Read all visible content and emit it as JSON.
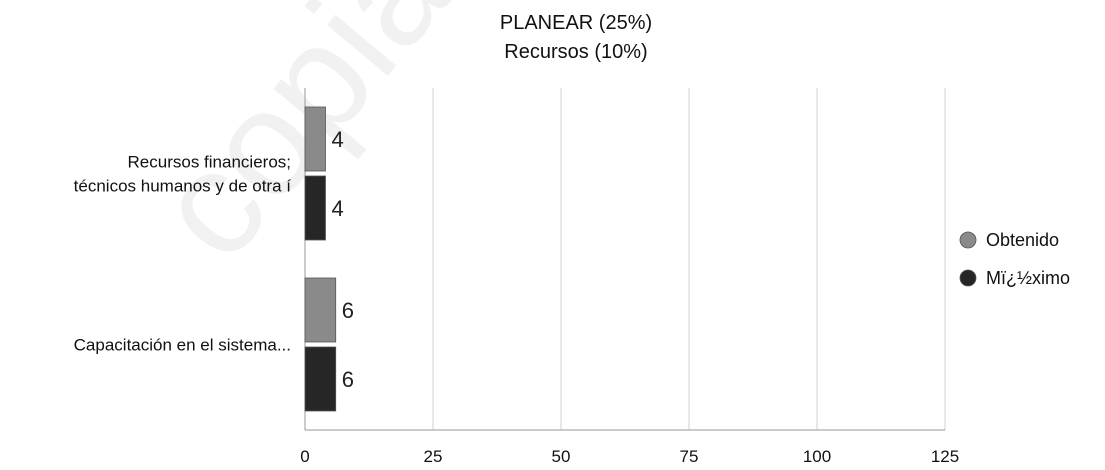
{
  "chart_data": {
    "type": "bar",
    "orientation": "horizontal",
    "title": "PLANEAR (25%)",
    "subtitle": "Recursos (10%)",
    "categories": [
      [
        "Recursos financieros;",
        "técnicos humanos y de otra í"
      ],
      [
        "Capacitación en el sistema..."
      ]
    ],
    "series": [
      {
        "name": "Obtenido",
        "color": "#8a8a8a",
        "values": [
          4,
          6
        ]
      },
      {
        "name": "Mï¿½ximo",
        "color": "#262626",
        "values": [
          4,
          6
        ]
      }
    ],
    "xlim": [
      0,
      125
    ],
    "xticks": [
      0,
      25,
      50,
      75,
      100,
      125
    ],
    "data_labels": true,
    "grid": true,
    "legend_position": "right",
    "watermark": "copia del original"
  }
}
